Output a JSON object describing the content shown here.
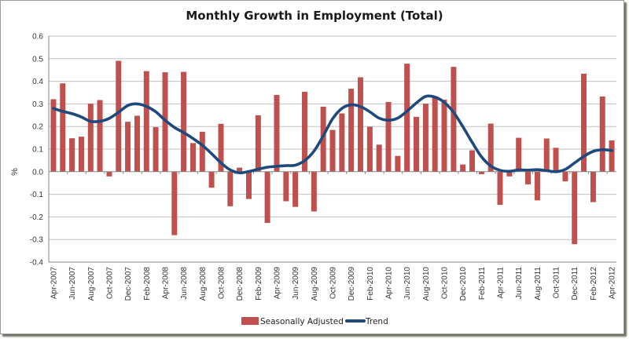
{
  "chart_data": {
    "type": "bar",
    "title": "Monthly Growth in Employment (Total)",
    "xlabel": "",
    "ylabel": "%",
    "ylim": [
      -0.4,
      0.6
    ],
    "yticks": [
      0.6,
      0.5,
      0.4,
      0.3,
      0.2,
      0.1,
      0.0,
      -0.1,
      -0.2,
      -0.3,
      -0.4
    ],
    "ytick_labels": [
      "0.6",
      "0.5",
      "0.4",
      "0.3",
      "0.2",
      "0.1",
      "0.0",
      "-0.1",
      "-0.2",
      "-0.3",
      "-0.4"
    ],
    "grid": true,
    "legend_position": "bottom",
    "categories": [
      "Apr-2007",
      "May-2007",
      "Jun-2007",
      "Jul-2007",
      "Aug-2007",
      "Sep-2007",
      "Oct-2007",
      "Nov-2007",
      "Dec-2007",
      "Jan-2008",
      "Feb-2008",
      "Mar-2008",
      "Apr-2008",
      "May-2008",
      "Jun-2008",
      "Jul-2008",
      "Aug-2008",
      "Sep-2008",
      "Oct-2008",
      "Nov-2008",
      "Dec-2008",
      "Jan-2009",
      "Feb-2009",
      "Mar-2009",
      "Apr-2009",
      "May-2009",
      "Jun-2009",
      "Jul-2009",
      "Aug-2009",
      "Sep-2009",
      "Oct-2009",
      "Nov-2009",
      "Dec-2009",
      "Jan-2010",
      "Feb-2010",
      "Mar-2010",
      "Apr-2010",
      "May-2010",
      "Jun-2010",
      "Jul-2010",
      "Aug-2010",
      "Sep-2010",
      "Oct-2010",
      "Nov-2010",
      "Dec-2010",
      "Jan-2011",
      "Feb-2011",
      "Mar-2011",
      "Apr-2011",
      "May-2011",
      "Jun-2011",
      "Jul-2011",
      "Aug-2011",
      "Sep-2011",
      "Oct-2011",
      "Nov-2011",
      "Dec-2011",
      "Jan-2012",
      "Feb-2012",
      "Mar-2012",
      "Apr-2012"
    ],
    "xtick_labels": [
      "Apr-2007",
      "Jun-2007",
      "Aug-2007",
      "Oct-2007",
      "Dec-2007",
      "Feb-2008",
      "Apr-2008",
      "Jun-2008",
      "Aug-2008",
      "Oct-2008",
      "Dec-2008",
      "Feb-2009",
      "Apr-2009",
      "Jun-2009",
      "Aug-2009",
      "Oct-2009",
      "Dec-2009",
      "Feb-2010",
      "Apr-2010",
      "Jun-2010",
      "Aug-2010",
      "Oct-2010",
      "Dec-2010",
      "Feb-2011",
      "Apr-2011",
      "Jun-2011",
      "Aug-2011",
      "Oct-2011",
      "Dec-2011",
      "Feb-2012",
      "Apr-2012"
    ],
    "series": [
      {
        "name": "Seasonally Adjusted",
        "type": "bar",
        "color": "#c0504d",
        "values": [
          0.32,
          0.39,
          0.147,
          0.154,
          0.3,
          0.316,
          -0.02,
          0.49,
          0.22,
          0.247,
          0.444,
          0.196,
          0.439,
          -0.28,
          0.441,
          0.126,
          0.176,
          -0.07,
          0.211,
          -0.152,
          0.017,
          -0.12,
          0.249,
          -0.226,
          0.339,
          -0.13,
          -0.155,
          0.353,
          -0.175,
          0.287,
          0.184,
          0.257,
          0.366,
          0.417,
          0.198,
          0.119,
          0.308,
          0.069,
          0.477,
          0.242,
          0.3,
          0.326,
          0.318,
          0.463,
          0.031,
          0.094,
          -0.01,
          0.212,
          -0.146,
          -0.02,
          0.149,
          -0.055,
          -0.126,
          0.146,
          0.105,
          -0.042,
          -0.32,
          0.433,
          -0.134,
          0.332,
          0.138
        ]
      },
      {
        "name": "Trend",
        "type": "line",
        "color": "#1f497d",
        "values": [
          0.28,
          0.267,
          0.257,
          0.242,
          0.223,
          0.223,
          0.236,
          0.263,
          0.293,
          0.3,
          0.289,
          0.265,
          0.228,
          0.196,
          0.173,
          0.147,
          0.117,
          0.08,
          0.039,
          0.008,
          -0.005,
          0.001,
          0.011,
          0.02,
          0.024,
          0.027,
          0.029,
          0.049,
          0.091,
          0.159,
          0.234,
          0.28,
          0.296,
          0.288,
          0.265,
          0.237,
          0.228,
          0.237,
          0.268,
          0.304,
          0.333,
          0.33,
          0.307,
          0.263,
          0.199,
          0.13,
          0.066,
          0.025,
          0.006,
          0.002,
          0.008,
          0.007,
          0.009,
          0.005,
          0.0,
          0.01,
          0.039,
          0.068,
          0.09,
          0.097,
          0.094
        ]
      }
    ]
  }
}
